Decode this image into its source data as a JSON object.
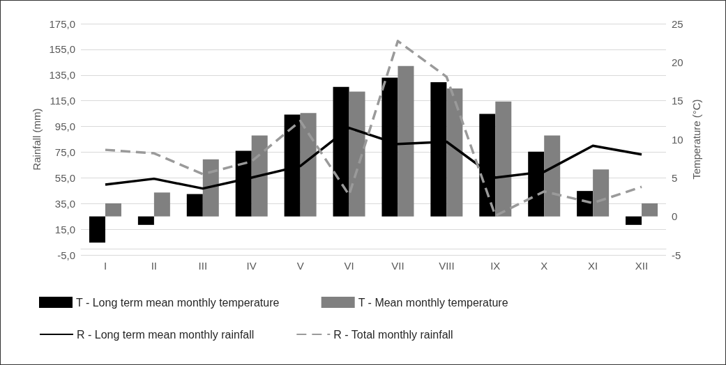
{
  "chart_data": {
    "type": "bar",
    "ylabel": "Rainfall (mm)",
    "y2label": "Temperature (°C)",
    "categories": [
      "I",
      "II",
      "III",
      "IV",
      "V",
      "VI",
      "VII",
      "VIII",
      "IX",
      "X",
      "XI",
      "XII"
    ],
    "series": [
      {
        "name": "T - Long term mean monthly temperature",
        "axis": "y2",
        "color": "#000000",
        "values": [
          -3.4,
          -1.1,
          2.9,
          8.5,
          13.2,
          16.8,
          18.0,
          17.4,
          13.3,
          8.4,
          3.3,
          -1.1
        ]
      },
      {
        "name": "T - Mean monthly temperature",
        "axis": "y2",
        "color": "#808080",
        "values": [
          1.7,
          3.1,
          7.4,
          10.5,
          13.4,
          16.2,
          19.5,
          16.6,
          14.9,
          10.5,
          6.1,
          1.7
        ]
      },
      {
        "name": "R - Long term mean monthly rainfall",
        "type": "line",
        "axis": "y",
        "color": "#000000",
        "line_style": "solid",
        "values": [
          49.8,
          54.3,
          46.7,
          55.2,
          64.2,
          93.9,
          81.3,
          83.1,
          55.2,
          59.7,
          80.0,
          73.2
        ]
      },
      {
        "name": "R - Total monthly rainfall",
        "type": "line",
        "axis": "y",
        "color": "#9a9a9a",
        "line_style": "dashed",
        "values": [
          76.8,
          74.1,
          57.9,
          67.8,
          99.3,
          41.7,
          161.5,
          133.6,
          25.5,
          44.4,
          35.4,
          48.0
        ]
      }
    ],
    "ylim": [
      -5,
      175
    ],
    "yticks": [
      {
        "value": -5,
        "label": "-5,0"
      },
      {
        "value": 15,
        "label": "15,0"
      },
      {
        "value": 35,
        "label": "35,0"
      },
      {
        "value": 55,
        "label": "55,0"
      },
      {
        "value": 75,
        "label": "75,0"
      },
      {
        "value": 95,
        "label": "95,0"
      },
      {
        "value": 115,
        "label": "115,0"
      },
      {
        "value": 135,
        "label": "135,0"
      },
      {
        "value": 155,
        "label": "155,0"
      },
      {
        "value": 175,
        "label": "175,0"
      }
    ],
    "y2lim": [
      -5,
      25
    ],
    "y2ticks": [
      -5,
      0,
      5,
      10,
      15,
      20,
      25
    ],
    "grid": "y",
    "marker": "none",
    "legend": "bottom"
  }
}
